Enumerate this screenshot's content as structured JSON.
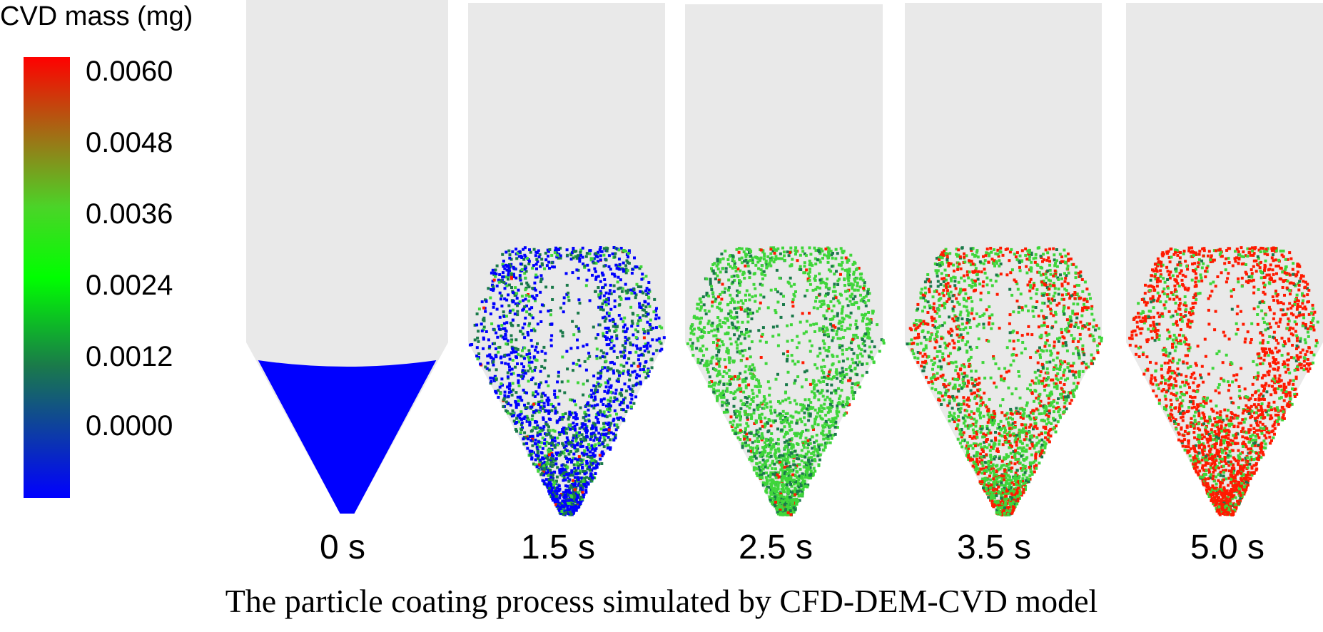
{
  "legend": {
    "title": "CVD mass (mg)",
    "ticks": [
      "0.0060",
      "0.0048",
      "0.0036",
      "0.0024",
      "0.0012",
      "0.0000"
    ],
    "colors": [
      "#0000ff",
      "#1a7a4a",
      "#00ff00",
      "#4bd428",
      "#ff0000"
    ]
  },
  "panels": [
    {
      "time": "0 s",
      "state": "packed",
      "mix": {
        "blue": 1.0
      }
    },
    {
      "time": "1.5 s",
      "state": "fluidized",
      "mix": {
        "blue": 0.55,
        "teal": 0.3,
        "green": 0.14,
        "red": 0.01
      }
    },
    {
      "time": "2.5 s",
      "state": "fluidized",
      "mix": {
        "green": 0.75,
        "teal": 0.2,
        "red": 0.05
      }
    },
    {
      "time": "3.5 s",
      "state": "fluidized",
      "mix": {
        "green": 0.55,
        "red": 0.35,
        "teal": 0.1
      }
    },
    {
      "time": "5.0 s",
      "state": "fluidized",
      "mix": {
        "red": 0.7,
        "green": 0.25,
        "teal": 0.05
      }
    }
  ],
  "caption": "The particle coating process simulated by CFD-DEM-CVD model"
}
